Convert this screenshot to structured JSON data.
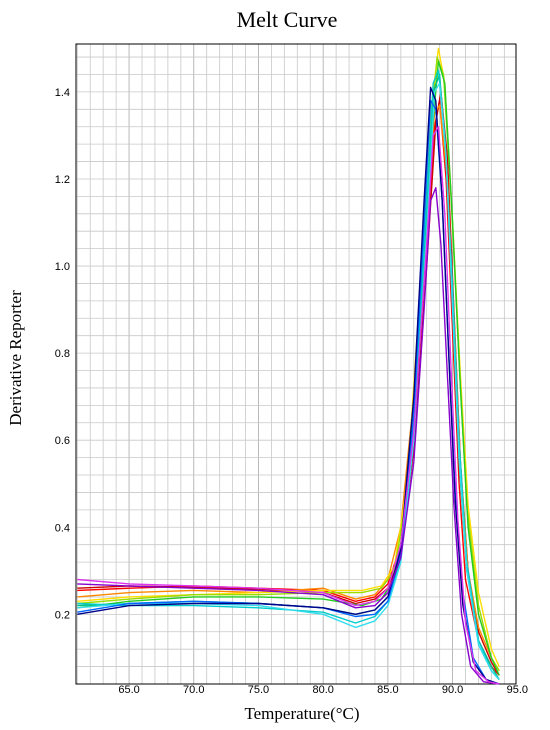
{
  "chart_data": {
    "type": "line",
    "title": "Melt Curve",
    "xlabel": "Temperature(°C)",
    "ylabel": "Derivative Reporter",
    "xlim": [
      60.9,
      94.9
    ],
    "ylim": [
      0.04,
      1.51
    ],
    "x_ticks": [
      "65.0",
      "70.0",
      "75.0",
      "80.0",
      "85.0",
      "90.0",
      "95.0"
    ],
    "y_ticks": [
      "0.2",
      "0.4",
      "0.6",
      "0.8",
      "1.0",
      "1.2",
      "1.4"
    ],
    "grid": true,
    "x_minor_step": 1.0,
    "y_minor_step": 0.04,
    "series": [
      {
        "color": "#ff0000",
        "values": [
          [
            61,
            0.255
          ],
          [
            65,
            0.26
          ],
          [
            70,
            0.265
          ],
          [
            75,
            0.26
          ],
          [
            80,
            0.255
          ],
          [
            82.5,
            0.23
          ],
          [
            84,
            0.24
          ],
          [
            85,
            0.27
          ],
          [
            86,
            0.36
          ],
          [
            87,
            0.62
          ],
          [
            88,
            1.05
          ],
          [
            88.6,
            1.32
          ],
          [
            89,
            1.38
          ],
          [
            89.5,
            1.2
          ],
          [
            90,
            0.85
          ],
          [
            90.5,
            0.5
          ],
          [
            91,
            0.28
          ],
          [
            92,
            0.14
          ],
          [
            93,
            0.08
          ],
          [
            93.6,
            0.06
          ]
        ]
      },
      {
        "color": "#cc0000",
        "values": [
          [
            61,
            0.26
          ],
          [
            65,
            0.265
          ],
          [
            70,
            0.262
          ],
          [
            75,
            0.258
          ],
          [
            80,
            0.25
          ],
          [
            82.5,
            0.225
          ],
          [
            84,
            0.235
          ],
          [
            85,
            0.26
          ],
          [
            86,
            0.34
          ],
          [
            87,
            0.58
          ],
          [
            88,
            1.0
          ],
          [
            88.7,
            1.33
          ],
          [
            89.1,
            1.4
          ],
          [
            89.6,
            1.25
          ],
          [
            90.1,
            0.9
          ],
          [
            90.6,
            0.55
          ],
          [
            91.2,
            0.3
          ],
          [
            92,
            0.16
          ],
          [
            93,
            0.09
          ],
          [
            93.6,
            0.06
          ]
        ]
      },
      {
        "color": "#ff8800",
        "values": [
          [
            61,
            0.24
          ],
          [
            65,
            0.25
          ],
          [
            70,
            0.255
          ],
          [
            75,
            0.25
          ],
          [
            80,
            0.26
          ],
          [
            82.5,
            0.235
          ],
          [
            84,
            0.245
          ],
          [
            85,
            0.28
          ],
          [
            86,
            0.4
          ],
          [
            87,
            0.7
          ],
          [
            88,
            1.15
          ],
          [
            88.6,
            1.35
          ],
          [
            89,
            1.37
          ],
          [
            89.6,
            1.2
          ],
          [
            90.1,
            0.88
          ],
          [
            90.6,
            0.55
          ],
          [
            91.2,
            0.3
          ],
          [
            92,
            0.17
          ],
          [
            93,
            0.1
          ],
          [
            93.6,
            0.07
          ]
        ]
      },
      {
        "color": "#ffdd00",
        "values": [
          [
            61,
            0.23
          ],
          [
            65,
            0.24
          ],
          [
            70,
            0.245
          ],
          [
            75,
            0.25
          ],
          [
            80,
            0.255
          ],
          [
            83,
            0.255
          ],
          [
            84.5,
            0.265
          ],
          [
            85.5,
            0.31
          ],
          [
            86.5,
            0.5
          ],
          [
            87.5,
            0.95
          ],
          [
            88.3,
            1.35
          ],
          [
            88.9,
            1.5
          ],
          [
            89.4,
            1.42
          ],
          [
            90,
            1.1
          ],
          [
            90.6,
            0.75
          ],
          [
            91.2,
            0.45
          ],
          [
            92,
            0.25
          ],
          [
            93,
            0.12
          ],
          [
            93.6,
            0.08
          ]
        ]
      },
      {
        "color": "#99dd00",
        "values": [
          [
            61,
            0.225
          ],
          [
            65,
            0.235
          ],
          [
            70,
            0.245
          ],
          [
            75,
            0.245
          ],
          [
            80,
            0.25
          ],
          [
            83,
            0.25
          ],
          [
            84.5,
            0.26
          ],
          [
            85.5,
            0.3
          ],
          [
            86.5,
            0.48
          ],
          [
            87.5,
            0.9
          ],
          [
            88.3,
            1.3
          ],
          [
            88.8,
            1.48
          ],
          [
            89.3,
            1.44
          ],
          [
            89.9,
            1.15
          ],
          [
            90.5,
            0.78
          ],
          [
            91.1,
            0.45
          ],
          [
            92,
            0.22
          ],
          [
            93,
            0.1
          ],
          [
            93.6,
            0.07
          ]
        ]
      },
      {
        "color": "#22cc22",
        "values": [
          [
            61,
            0.215
          ],
          [
            65,
            0.23
          ],
          [
            70,
            0.24
          ],
          [
            75,
            0.24
          ],
          [
            80,
            0.235
          ],
          [
            83,
            0.22
          ],
          [
            84.5,
            0.235
          ],
          [
            85.5,
            0.28
          ],
          [
            86.5,
            0.45
          ],
          [
            87.5,
            0.88
          ],
          [
            88.4,
            1.3
          ],
          [
            88.9,
            1.47
          ],
          [
            89.4,
            1.42
          ],
          [
            90,
            1.1
          ],
          [
            90.6,
            0.72
          ],
          [
            91.2,
            0.4
          ],
          [
            92,
            0.2
          ],
          [
            93,
            0.1
          ],
          [
            93.6,
            0.06
          ]
        ]
      },
      {
        "color": "#00bb88",
        "values": [
          [
            61,
            0.22
          ],
          [
            65,
            0.225
          ],
          [
            70,
            0.23
          ],
          [
            75,
            0.225
          ],
          [
            80,
            0.215
          ],
          [
            82.5,
            0.2
          ],
          [
            84,
            0.21
          ],
          [
            85,
            0.24
          ],
          [
            86,
            0.33
          ],
          [
            87,
            0.62
          ],
          [
            88,
            1.1
          ],
          [
            88.5,
            1.4
          ],
          [
            89,
            1.44
          ],
          [
            89.5,
            1.25
          ],
          [
            90,
            0.9
          ],
          [
            90.5,
            0.55
          ],
          [
            91.1,
            0.3
          ],
          [
            92,
            0.14
          ],
          [
            93,
            0.08
          ],
          [
            93.6,
            0.05
          ]
        ]
      },
      {
        "color": "#00cccc",
        "values": [
          [
            61,
            0.225
          ],
          [
            65,
            0.22
          ],
          [
            70,
            0.22
          ],
          [
            75,
            0.215
          ],
          [
            80,
            0.205
          ],
          [
            82.5,
            0.18
          ],
          [
            84,
            0.195
          ],
          [
            85,
            0.23
          ],
          [
            86,
            0.33
          ],
          [
            87,
            0.65
          ],
          [
            88,
            1.15
          ],
          [
            88.5,
            1.42
          ],
          [
            88.9,
            1.45
          ],
          [
            89.4,
            1.3
          ],
          [
            90,
            0.95
          ],
          [
            90.5,
            0.6
          ],
          [
            91.1,
            0.32
          ],
          [
            92,
            0.14
          ],
          [
            93,
            0.07
          ],
          [
            93.6,
            0.05
          ]
        ]
      },
      {
        "color": "#33ddee",
        "values": [
          [
            61,
            0.215
          ],
          [
            65,
            0.225
          ],
          [
            70,
            0.225
          ],
          [
            75,
            0.22
          ],
          [
            80,
            0.2
          ],
          [
            82.5,
            0.17
          ],
          [
            84,
            0.185
          ],
          [
            85,
            0.22
          ],
          [
            86,
            0.32
          ],
          [
            87,
            0.6
          ],
          [
            88,
            1.08
          ],
          [
            88.6,
            1.4
          ],
          [
            89,
            1.42
          ],
          [
            89.5,
            1.25
          ],
          [
            90,
            0.9
          ],
          [
            90.5,
            0.56
          ],
          [
            91.1,
            0.3
          ],
          [
            92,
            0.13
          ],
          [
            93,
            0.07
          ],
          [
            93.6,
            0.05
          ]
        ]
      },
      {
        "color": "#0066ff",
        "values": [
          [
            61,
            0.205
          ],
          [
            65,
            0.225
          ],
          [
            70,
            0.23
          ],
          [
            75,
            0.225
          ],
          [
            80,
            0.215
          ],
          [
            82.5,
            0.195
          ],
          [
            84,
            0.2
          ],
          [
            85,
            0.23
          ],
          [
            86,
            0.34
          ],
          [
            87,
            0.66
          ],
          [
            87.8,
            1.1
          ],
          [
            88.3,
            1.38
          ],
          [
            88.7,
            1.36
          ],
          [
            89.2,
            1.15
          ],
          [
            89.7,
            0.8
          ],
          [
            90.2,
            0.48
          ],
          [
            90.8,
            0.25
          ],
          [
            91.6,
            0.1
          ],
          [
            92.6,
            0.05
          ],
          [
            93.6,
            0.04
          ]
        ]
      },
      {
        "color": "#000088",
        "values": [
          [
            61,
            0.2
          ],
          [
            65,
            0.22
          ],
          [
            70,
            0.225
          ],
          [
            75,
            0.225
          ],
          [
            80,
            0.215
          ],
          [
            82.5,
            0.2
          ],
          [
            84,
            0.21
          ],
          [
            85,
            0.24
          ],
          [
            86,
            0.35
          ],
          [
            87,
            0.7
          ],
          [
            87.8,
            1.15
          ],
          [
            88.3,
            1.41
          ],
          [
            88.7,
            1.38
          ],
          [
            89.2,
            1.15
          ],
          [
            89.7,
            0.8
          ],
          [
            90.2,
            0.46
          ],
          [
            90.8,
            0.22
          ],
          [
            91.6,
            0.09
          ],
          [
            92.6,
            0.05
          ],
          [
            93.6,
            0.04
          ]
        ]
      },
      {
        "color": "#8800cc",
        "values": [
          [
            61,
            0.27
          ],
          [
            65,
            0.265
          ],
          [
            70,
            0.26
          ],
          [
            75,
            0.255
          ],
          [
            80,
            0.245
          ],
          [
            82.5,
            0.215
          ],
          [
            84,
            0.22
          ],
          [
            85,
            0.25
          ],
          [
            86,
            0.33
          ],
          [
            87,
            0.55
          ],
          [
            87.8,
            0.9
          ],
          [
            88.3,
            1.15
          ],
          [
            88.7,
            1.18
          ],
          [
            89.1,
            1.05
          ],
          [
            89.6,
            0.75
          ],
          [
            90.1,
            0.45
          ],
          [
            90.7,
            0.2
          ],
          [
            91.4,
            0.08
          ],
          [
            92.4,
            0.045
          ],
          [
            93.6,
            0.04
          ]
        ]
      },
      {
        "color": "#dd33ee",
        "values": [
          [
            61,
            0.28
          ],
          [
            65,
            0.27
          ],
          [
            70,
            0.265
          ],
          [
            75,
            0.26
          ],
          [
            80,
            0.25
          ],
          [
            82.5,
            0.22
          ],
          [
            84,
            0.23
          ],
          [
            85,
            0.26
          ],
          [
            86,
            0.36
          ],
          [
            87,
            0.62
          ],
          [
            88,
            1.05
          ],
          [
            88.5,
            1.3
          ],
          [
            88.9,
            1.32
          ],
          [
            89.4,
            1.12
          ],
          [
            89.9,
            0.75
          ],
          [
            90.4,
            0.42
          ],
          [
            91,
            0.18
          ],
          [
            91.8,
            0.07
          ],
          [
            92.8,
            0.045
          ],
          [
            93.6,
            0.04
          ]
        ]
      }
    ]
  }
}
